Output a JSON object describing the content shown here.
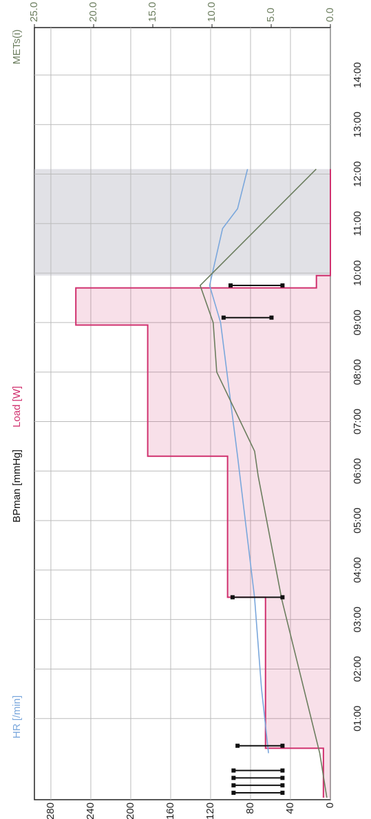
{
  "chart_data": {
    "type": "line",
    "xlim": [
      -0.64,
      14.96
    ],
    "xticks": [
      {
        "value": 1,
        "label": "01:00"
      },
      {
        "value": 2,
        "label": "02:00"
      },
      {
        "value": 3,
        "label": "03:00"
      },
      {
        "value": 4,
        "label": "04:00"
      },
      {
        "value": 5,
        "label": "05:00"
      },
      {
        "value": 6,
        "label": "06:00"
      },
      {
        "value": 7,
        "label": "07:00"
      },
      {
        "value": 8,
        "label": "08:00"
      },
      {
        "value": 9,
        "label": "09:00"
      },
      {
        "value": 10,
        "label": "10:00"
      },
      {
        "value": 11,
        "label": "11:00"
      },
      {
        "value": 12,
        "label": "12:00"
      },
      {
        "value": 13,
        "label": "13:00"
      },
      {
        "value": 14,
        "label": "14:00"
      }
    ],
    "ylim": [
      0,
      296.5
    ],
    "yticks": [
      0,
      40,
      80,
      120,
      160,
      200,
      240,
      280
    ],
    "y2lim": [
      0,
      25
    ],
    "y2ticks": [
      {
        "value": 0,
        "label": "0.0"
      },
      {
        "value": 5,
        "label": "5.0"
      },
      {
        "value": 10,
        "label": "10.0"
      },
      {
        "value": 15,
        "label": "15.0"
      },
      {
        "value": 20,
        "label": "20.0"
      },
      {
        "value": 25,
        "label": "25.0"
      }
    ],
    "grid": true,
    "shade_x": [
      9.95,
      12.1
    ],
    "series": [
      {
        "name": "Load [W]",
        "color": "#d0306e",
        "step": true,
        "fill": true,
        "x": [
          -0.6,
          0.4,
          3.45,
          6.3,
          8.95,
          9.7,
          9.95,
          12.1
        ],
        "values": [
          7,
          65,
          103,
          183,
          255,
          14,
          0,
          0
        ]
      },
      {
        "name": "HR [/min]",
        "color": "#7aa7dc",
        "x": [
          0.3,
          1.6,
          3.45,
          6.3,
          9.0,
          9.75,
          10.9,
          11.3,
          12.1
        ],
        "values": [
          62,
          69,
          76,
          93,
          110,
          121,
          108,
          93,
          83
        ]
      },
      {
        "name": "METs(i)",
        "color": "#6b7d5e",
        "axis": "y2",
        "x": [
          -0.6,
          0.3,
          3.4,
          5.9,
          6.4,
          8.0,
          9.0,
          9.75,
          12.1
        ],
        "values": [
          0.3,
          0.9,
          4.1,
          6.1,
          6.4,
          9.6,
          9.9,
          11.0,
          1.2
        ]
      },
      {
        "name": "BPman [mmHg]",
        "color": "#111111",
        "range": true,
        "x": [
          -0.5,
          -0.35,
          -0.2,
          -0.05,
          0.45,
          3.45,
          9.1,
          9.75
        ],
        "values": [
          97,
          97,
          97,
          97,
          93,
          98,
          107,
          100
        ],
        "low": [
          48,
          48,
          48,
          48,
          48,
          48,
          59,
          48
        ]
      }
    ]
  }
}
